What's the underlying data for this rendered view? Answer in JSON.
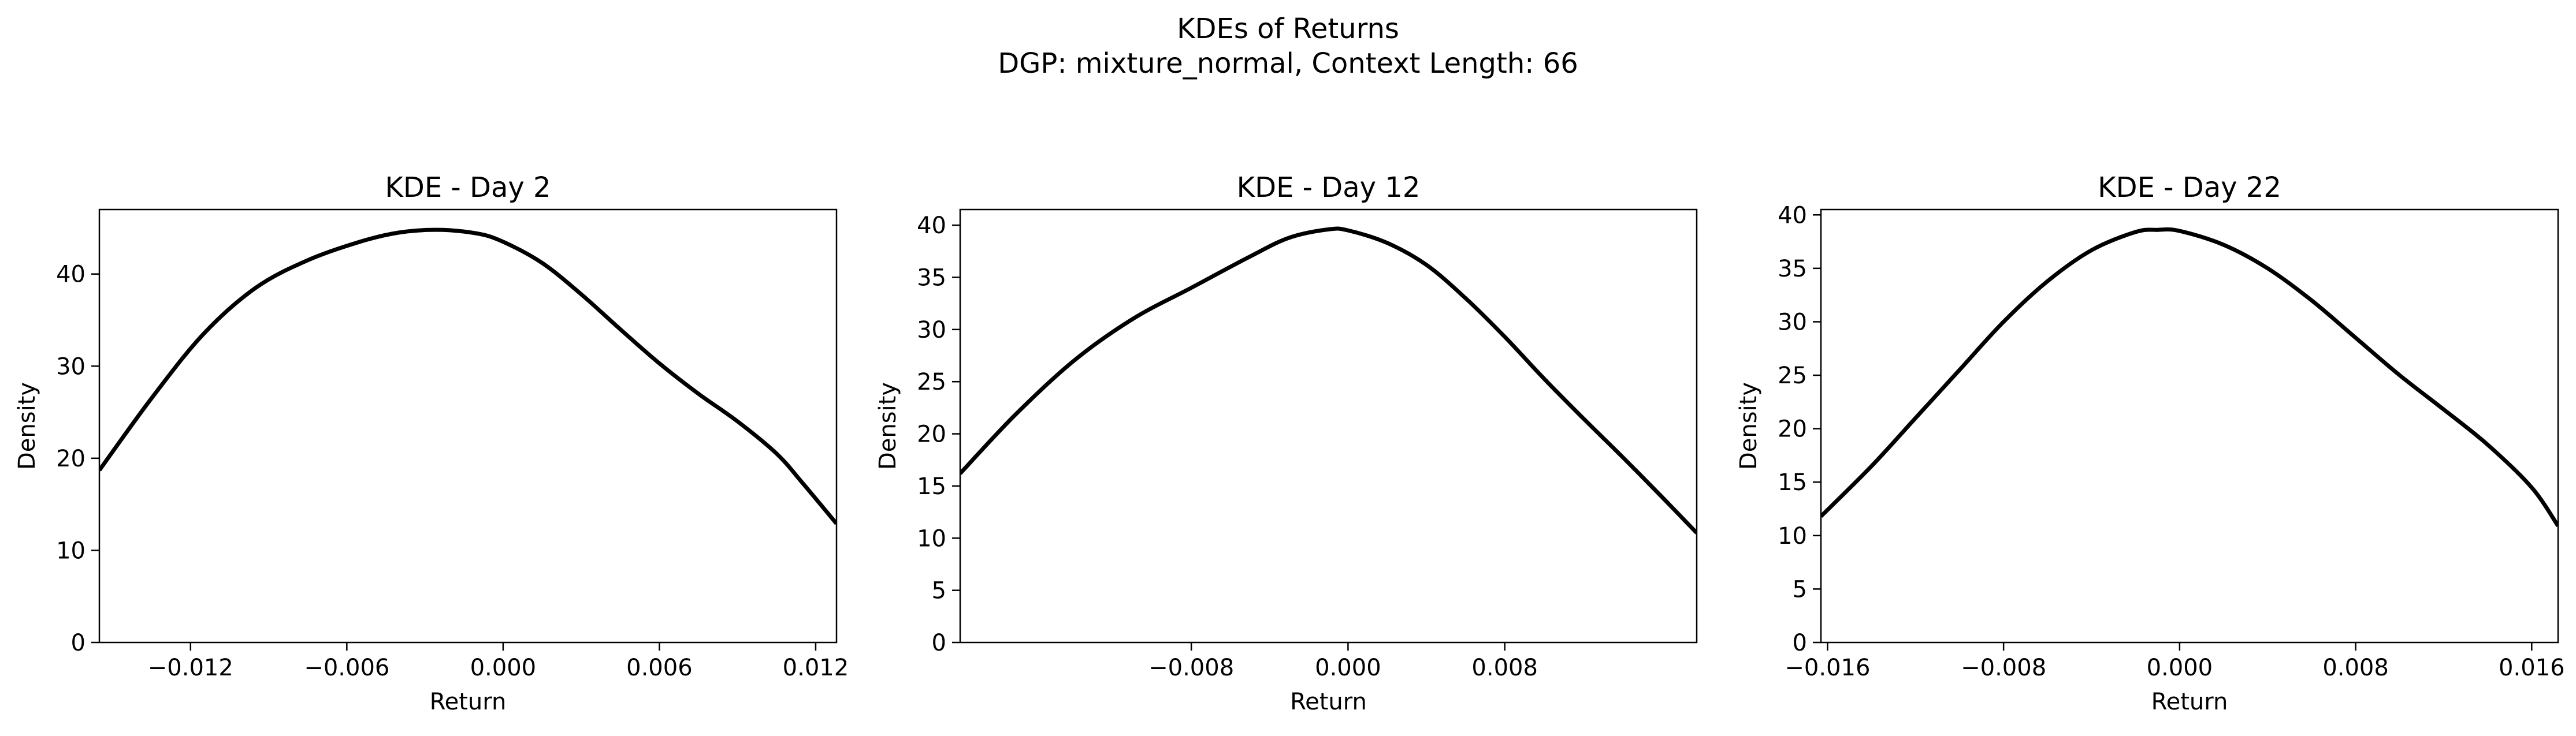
{
  "figure": {
    "title_line1": "KDEs of Returns",
    "title_line2": "DGP: mixture_normal, Context Length: 66",
    "line_color": "#000000",
    "background": "#ffffff"
  },
  "chart_data": [
    {
      "type": "line",
      "title": "KDE - Day 2",
      "xlabel": "Return",
      "ylabel": "Density",
      "xlim": [
        -0.0155,
        0.0128
      ],
      "ylim": [
        0,
        47
      ],
      "xticks": [
        -0.012,
        -0.006,
        0.0,
        0.006,
        0.012
      ],
      "xtick_labels": [
        "−0.012",
        "−0.006",
        "0.000",
        "0.006",
        "0.012"
      ],
      "yticks": [
        0,
        10,
        20,
        30,
        40
      ],
      "ytick_labels": [
        "0",
        "10",
        "20",
        "30",
        "40"
      ],
      "grid": false,
      "series": [
        {
          "x": [
            -0.0155,
            -0.0135,
            -0.0115,
            -0.0095,
            -0.0075,
            -0.0055,
            -0.004,
            -0.0025,
            -0.001,
            0.0,
            0.0015,
            0.003,
            0.0045,
            0.006,
            0.0075,
            0.009,
            0.0105,
            0.0115,
            0.0128
          ],
          "y": [
            18.7,
            26.5,
            33.5,
            38.5,
            41.5,
            43.5,
            44.5,
            44.8,
            44.4,
            43.5,
            41.2,
            37.8,
            34.0,
            30.3,
            27.0,
            24.0,
            20.5,
            17.3,
            12.9
          ]
        }
      ]
    },
    {
      "type": "line",
      "title": "KDE - Day 12",
      "xlabel": "Return",
      "ylabel": "Density",
      "xlim": [
        -0.0198,
        0.0178
      ],
      "ylim": [
        0,
        41.5
      ],
      "xticks": [
        -0.008,
        0.0,
        0.008
      ],
      "xtick_labels": [
        "−0.008",
        "0.000",
        "0.008"
      ],
      "yticks": [
        0,
        5,
        10,
        15,
        20,
        25,
        30,
        35,
        40
      ],
      "ytick_labels": [
        "0",
        "5",
        "10",
        "15",
        "20",
        "25",
        "30",
        "35",
        "40"
      ],
      "grid": false,
      "series": [
        {
          "x": [
            -0.0198,
            -0.017,
            -0.014,
            -0.011,
            -0.008,
            -0.005,
            -0.003,
            -0.001,
            0.0,
            0.002,
            0.004,
            0.006,
            0.008,
            0.01,
            0.012,
            0.014,
            0.016,
            0.0178
          ],
          "y": [
            16.2,
            21.8,
            27.0,
            31.0,
            34.0,
            37.0,
            38.8,
            39.6,
            39.5,
            38.3,
            36.2,
            33.0,
            29.3,
            25.3,
            21.5,
            17.8,
            14.0,
            10.5
          ]
        }
      ]
    },
    {
      "type": "line",
      "title": "KDE - Day 22",
      "xlabel": "Return",
      "ylabel": "Density",
      "xlim": [
        -0.0163,
        0.0172
      ],
      "ylim": [
        0,
        40.5
      ],
      "xticks": [
        -0.016,
        -0.008,
        0.0,
        0.008,
        0.016
      ],
      "xtick_labels": [
        "−0.016",
        "−0.008",
        "0.000",
        "0.008",
        "0.016"
      ],
      "yticks": [
        0,
        5,
        10,
        15,
        20,
        25,
        30,
        35,
        40
      ],
      "ytick_labels": [
        "0",
        "5",
        "10",
        "15",
        "20",
        "25",
        "30",
        "35",
        "40"
      ],
      "grid": false,
      "series": [
        {
          "x": [
            -0.0163,
            -0.014,
            -0.012,
            -0.01,
            -0.008,
            -0.006,
            -0.004,
            -0.002,
            -0.001,
            0.0,
            0.002,
            0.004,
            0.006,
            0.008,
            0.01,
            0.012,
            0.014,
            0.016,
            0.0172
          ],
          "y": [
            11.8,
            16.5,
            21.0,
            25.5,
            30.0,
            33.8,
            36.7,
            38.4,
            38.6,
            38.5,
            37.2,
            35.0,
            32.0,
            28.5,
            25.0,
            21.8,
            18.5,
            14.5,
            10.9
          ]
        }
      ]
    }
  ]
}
